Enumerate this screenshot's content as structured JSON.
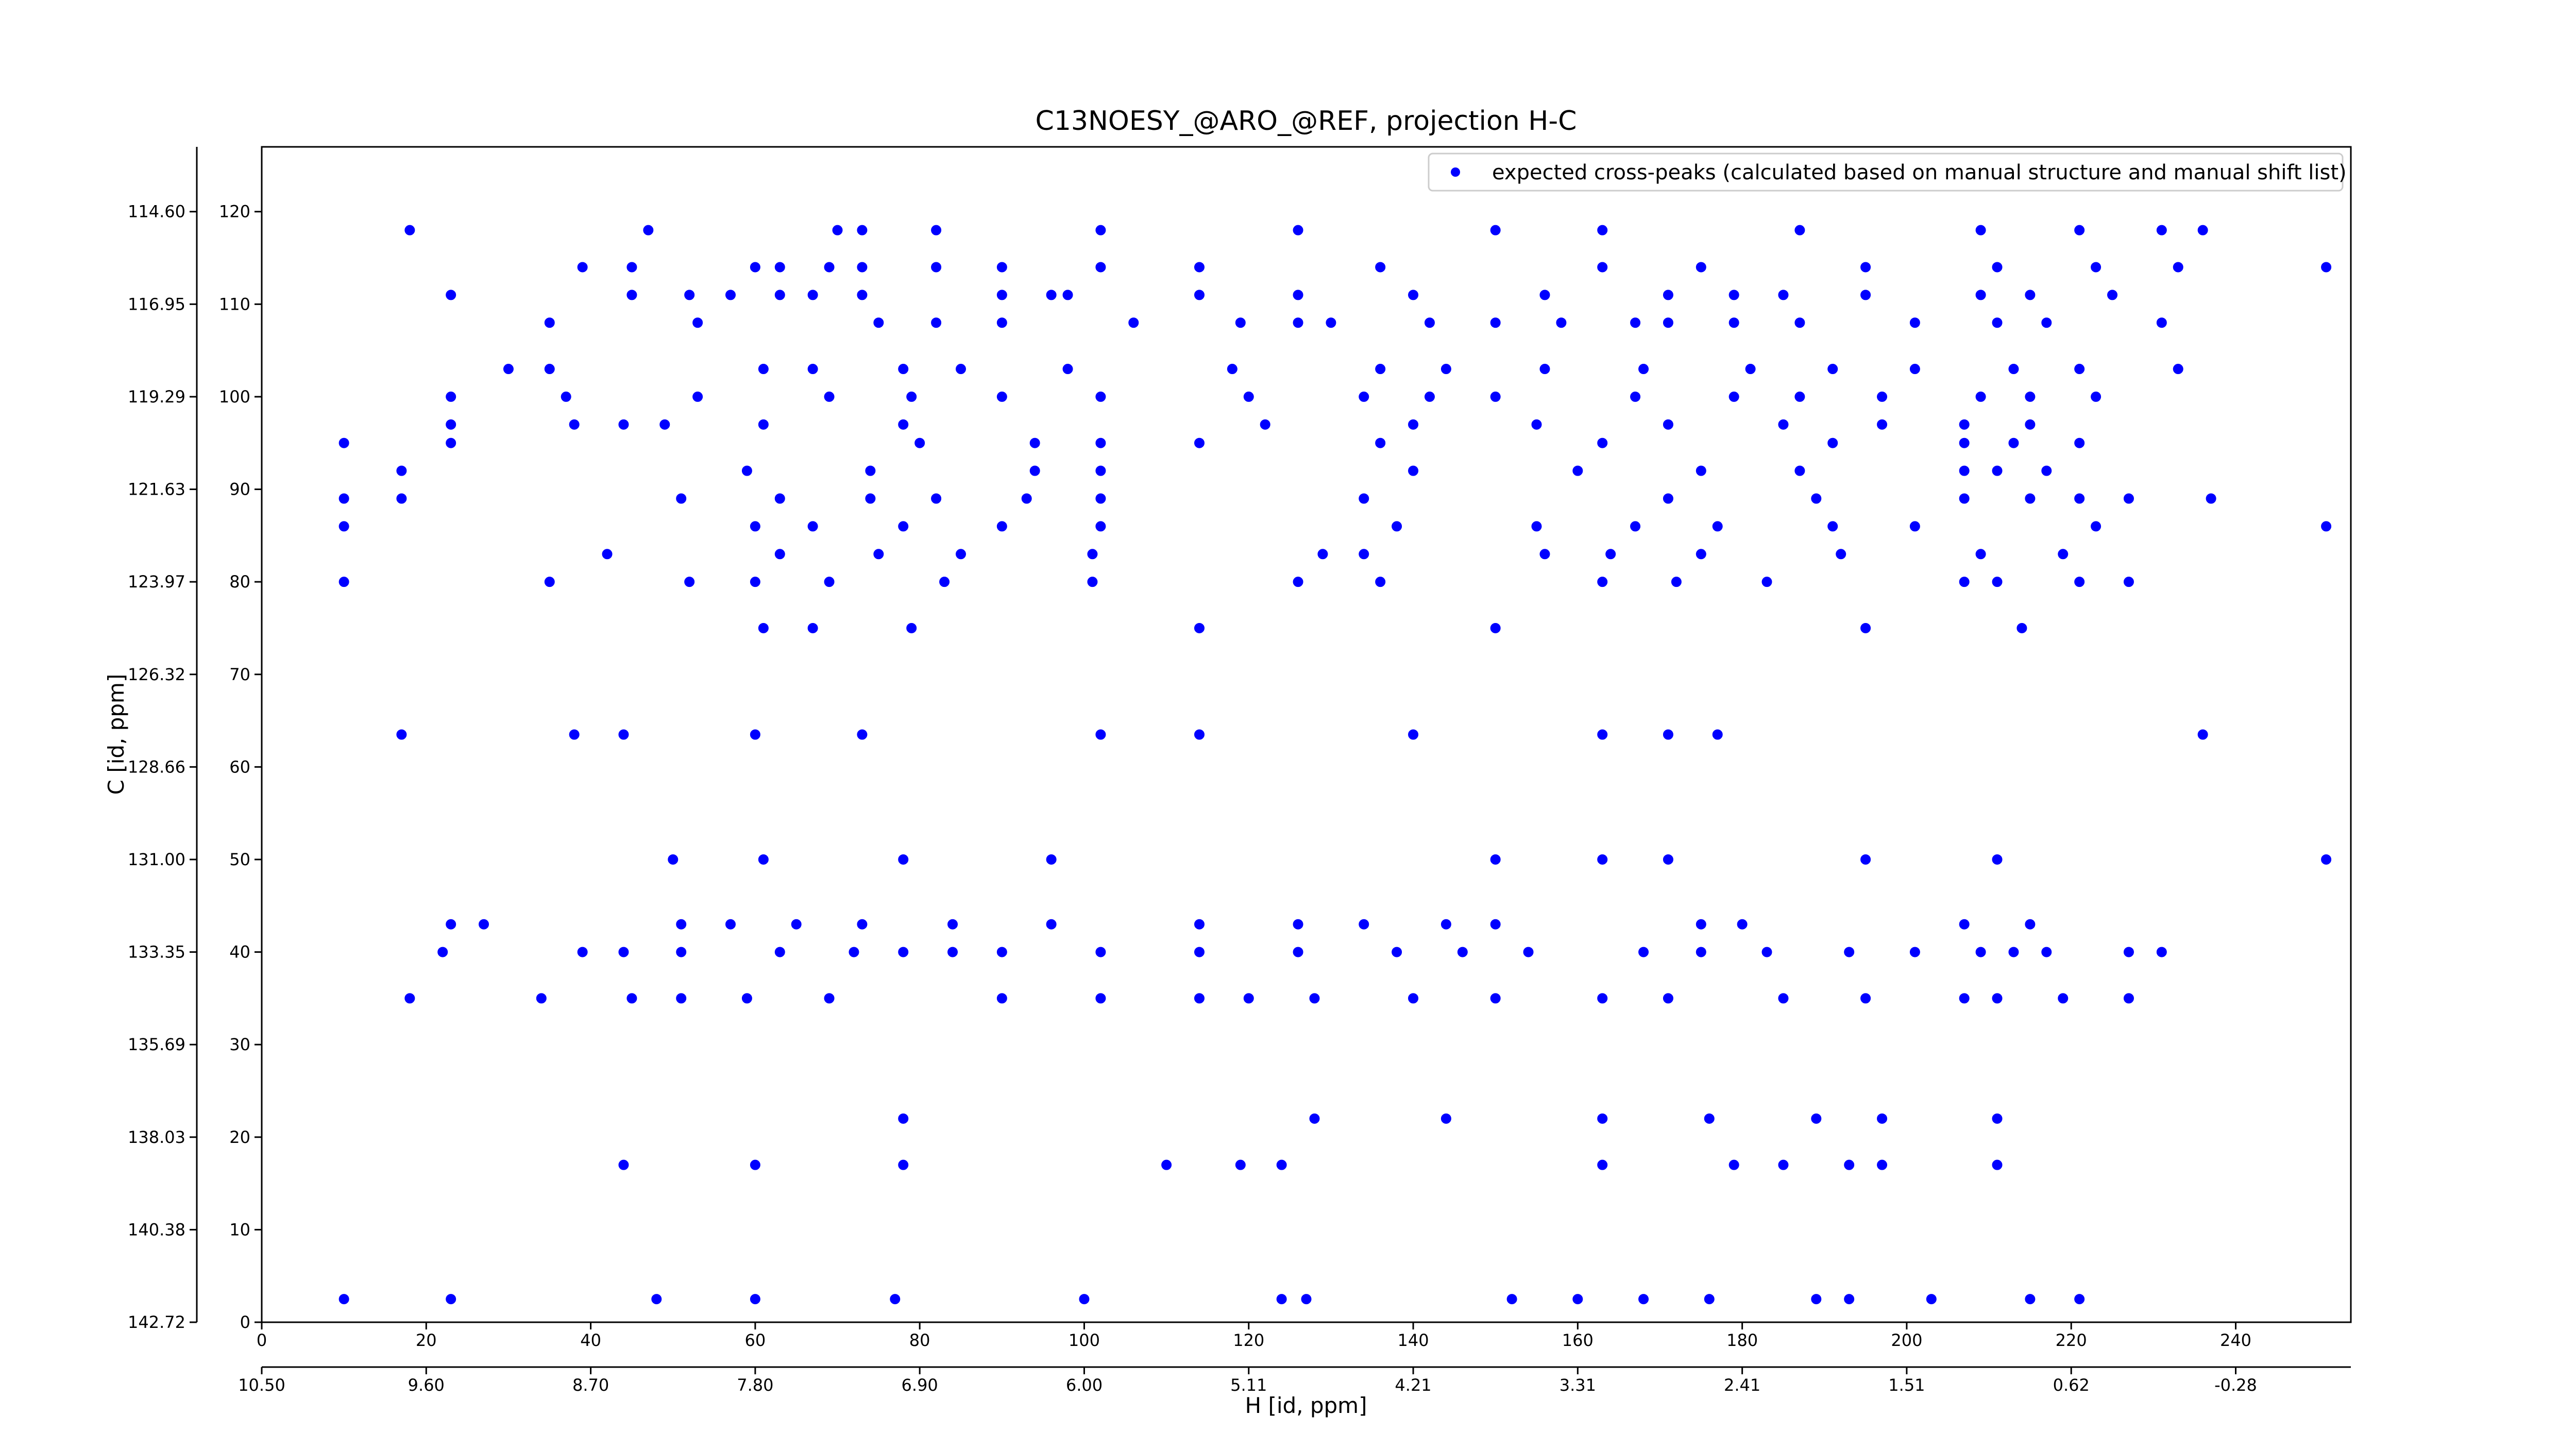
{
  "chart_data": {
    "type": "scatter",
    "title": "C13NOESY_@ARO_@REF, projection H-C",
    "xlabel": "H [id, ppm]",
    "ylabel": "C [id, ppm]",
    "xlim": [
      0,
      254
    ],
    "ylim": [
      0,
      127
    ],
    "xticks": [
      0,
      20,
      40,
      60,
      80,
      100,
      120,
      140,
      160,
      180,
      200,
      220,
      240
    ],
    "yticks": [
      0,
      10,
      20,
      30,
      40,
      50,
      60,
      70,
      80,
      90,
      100,
      110,
      120
    ],
    "x2lim": [
      0,
      254
    ],
    "x2ticks": [
      {
        "value": 0,
        "label": "10.50"
      },
      {
        "value": 20,
        "label": "9.60"
      },
      {
        "value": 40,
        "label": "8.70"
      },
      {
        "value": 60,
        "label": "7.80"
      },
      {
        "value": 80,
        "label": "6.90"
      },
      {
        "value": 100,
        "label": "6.00"
      },
      {
        "value": 120,
        "label": "5.11"
      },
      {
        "value": 140,
        "label": "4.21"
      },
      {
        "value": 160,
        "label": "3.31"
      },
      {
        "value": 180,
        "label": "2.41"
      },
      {
        "value": 200,
        "label": "1.51"
      },
      {
        "value": 220,
        "label": "0.62"
      },
      {
        "value": 240,
        "label": "-0.28"
      }
    ],
    "y2lim": [
      0,
      127
    ],
    "y2ticks": [
      {
        "value": 0,
        "label": "142.72"
      },
      {
        "value": 10,
        "label": "140.38"
      },
      {
        "value": 20,
        "label": "138.03"
      },
      {
        "value": 30,
        "label": "135.69"
      },
      {
        "value": 40,
        "label": "133.35"
      },
      {
        "value": 50,
        "label": "131.00"
      },
      {
        "value": 60,
        "label": "128.66"
      },
      {
        "value": 70,
        "label": "126.32"
      },
      {
        "value": 80,
        "label": "123.97"
      },
      {
        "value": 90,
        "label": "121.63"
      },
      {
        "value": 100,
        "label": "119.29"
      },
      {
        "value": 110,
        "label": "116.95"
      },
      {
        "value": 120,
        "label": "114.60"
      }
    ],
    "legend": "upper right",
    "x": [
      10,
      23,
      48,
      60,
      77,
      100,
      124,
      127,
      152,
      160,
      168,
      176,
      189,
      193,
      203,
      215,
      221,
      44,
      60,
      78,
      110,
      119,
      124,
      163,
      179,
      185,
      193,
      197,
      211,
      78,
      128,
      144,
      163,
      176,
      189,
      197,
      211,
      18,
      34,
      45,
      51,
      59,
      69,
      90,
      102,
      114,
      120,
      128,
      140,
      150,
      163,
      171,
      185,
      195,
      207,
      211,
      219,
      227,
      22,
      39,
      44,
      51,
      63,
      72,
      78,
      84,
      90,
      102,
      114,
      126,
      138,
      146,
      154,
      168,
      175,
      183,
      193,
      201,
      209,
      213,
      217,
      227,
      231,
      23,
      27,
      51,
      57,
      65,
      73,
      84,
      96,
      114,
      126,
      134,
      144,
      150,
      175,
      180,
      207,
      215,
      50,
      61,
      78,
      96,
      150,
      163,
      171,
      195,
      211,
      251,
      17,
      38,
      44,
      60,
      73,
      102,
      114,
      140,
      163,
      171,
      177,
      236,
      61,
      67,
      79,
      114,
      150,
      195,
      214,
      10,
      35,
      52,
      60,
      69,
      83,
      101,
      126,
      136,
      163,
      172,
      183,
      207,
      211,
      221,
      227,
      42,
      63,
      75,
      85,
      101,
      129,
      134,
      156,
      164,
      175,
      192,
      209,
      219,
      10,
      60,
      67,
      78,
      90,
      102,
      138,
      155,
      167,
      177,
      191,
      201,
      223,
      251,
      10,
      17,
      51,
      63,
      74,
      82,
      93,
      102,
      134,
      171,
      189,
      207,
      215,
      221,
      227,
      237,
      17,
      59,
      74,
      94,
      102,
      140,
      160,
      175,
      187,
      207,
      211,
      217,
      10,
      23,
      80,
      94,
      102,
      114,
      136,
      163,
      191,
      207,
      213,
      221,
      23,
      38,
      44,
      49,
      61,
      78,
      122,
      140,
      155,
      171,
      185,
      197,
      207,
      215,
      23,
      37,
      53,
      69,
      79,
      90,
      102,
      120,
      134,
      142,
      150,
      167,
      179,
      187,
      197,
      209,
      215,
      223,
      30,
      35,
      61,
      67,
      78,
      85,
      98,
      118,
      136,
      144,
      156,
      168,
      181,
      191,
      201,
      213,
      221,
      233,
      35,
      53,
      75,
      82,
      90,
      106,
      119,
      126,
      130,
      142,
      150,
      158,
      167,
      171,
      179,
      187,
      201,
      211,
      217,
      231,
      23,
      45,
      52,
      57,
      63,
      67,
      73,
      90,
      96,
      98,
      114,
      126,
      140,
      156,
      171,
      179,
      185,
      195,
      209,
      215,
      225,
      39,
      45,
      60,
      63,
      69,
      73,
      82,
      90,
      102,
      114,
      136,
      163,
      175,
      195,
      211,
      223,
      233,
      251,
      18,
      47,
      70,
      73,
      82,
      102,
      126,
      150,
      163,
      187,
      209,
      221,
      231,
      236
    ],
    "series": [
      {
        "name": "expected cross-peaks (calculated based on manual structure and manual shift list)",
        "color": "#0000ff",
        "values": [
          2.5,
          2.5,
          2.5,
          2.5,
          2.5,
          2.5,
          2.5,
          2.5,
          2.5,
          2.5,
          2.5,
          2.5,
          2.5,
          2.5,
          2.5,
          2.5,
          2.5,
          17,
          17,
          17,
          17,
          17,
          17,
          17,
          17,
          17,
          17,
          17,
          17,
          22,
          22,
          22,
          22,
          22,
          22,
          22,
          22,
          35,
          35,
          35,
          35,
          35,
          35,
          35,
          35,
          35,
          35,
          35,
          35,
          35,
          35,
          35,
          35,
          35,
          35,
          35,
          35,
          35,
          40,
          40,
          40,
          40,
          40,
          40,
          40,
          40,
          40,
          40,
          40,
          40,
          40,
          40,
          40,
          40,
          40,
          40,
          40,
          40,
          40,
          40,
          40,
          40,
          40,
          43,
          43,
          43,
          43,
          43,
          43,
          43,
          43,
          43,
          43,
          43,
          43,
          43,
          43,
          43,
          43,
          43,
          50,
          50,
          50,
          50,
          50,
          50,
          50,
          50,
          50,
          50,
          63.5,
          63.5,
          63.5,
          63.5,
          63.5,
          63.5,
          63.5,
          63.5,
          63.5,
          63.5,
          63.5,
          63.5,
          75,
          75,
          75,
          75,
          75,
          75,
          75,
          80,
          80,
          80,
          80,
          80,
          80,
          80,
          80,
          80,
          80,
          80,
          80,
          80,
          80,
          80,
          80,
          83,
          83,
          83,
          83,
          83,
          83,
          83,
          83,
          83,
          83,
          83,
          83,
          83,
          86,
          86,
          86,
          86,
          86,
          86,
          86,
          86,
          86,
          86,
          86,
          86,
          86,
          86,
          89,
          89,
          89,
          89,
          89,
          89,
          89,
          89,
          89,
          89,
          89,
          89,
          89,
          89,
          89,
          89,
          92,
          92,
          92,
          92,
          92,
          92,
          92,
          92,
          92,
          92,
          92,
          92,
          95,
          95,
          95,
          95,
          95,
          95,
          95,
          95,
          95,
          95,
          95,
          95,
          97,
          97,
          97,
          97,
          97,
          97,
          97,
          97,
          97,
          97,
          97,
          97,
          97,
          97,
          100,
          100,
          100,
          100,
          100,
          100,
          100,
          100,
          100,
          100,
          100,
          100,
          100,
          100,
          100,
          100,
          100,
          100,
          103,
          103,
          103,
          103,
          103,
          103,
          103,
          103,
          103,
          103,
          103,
          103,
          103,
          103,
          103,
          103,
          103,
          103,
          108,
          108,
          108,
          108,
          108,
          108,
          108,
          108,
          108,
          108,
          108,
          108,
          108,
          108,
          108,
          108,
          108,
          108,
          108,
          108,
          111,
          111,
          111,
          111,
          111,
          111,
          111,
          111,
          111,
          111,
          111,
          111,
          111,
          111,
          111,
          111,
          111,
          111,
          111,
          111,
          111,
          114,
          114,
          114,
          114,
          114,
          114,
          114,
          114,
          114,
          114,
          114,
          114,
          114,
          114,
          114,
          114,
          114,
          114,
          118,
          118,
          118,
          118,
          118,
          118,
          118,
          118,
          118,
          118,
          118,
          118,
          118,
          118
        ]
      }
    ]
  }
}
